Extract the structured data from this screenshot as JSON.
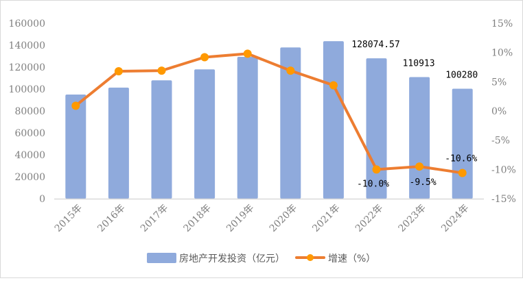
{
  "chart_data": {
    "type": "bar+line",
    "categories": [
      "2015年",
      "2016年",
      "2017年",
      "2018年",
      "2019年",
      "2020年",
      "2021年",
      "2022年",
      "2023年",
      "2024年"
    ],
    "series": [
      {
        "name": "房地产开发投资（亿元）",
        "type": "bar",
        "axis": "left",
        "color": "#8faadc",
        "values": [
          95000,
          101300,
          108000,
          118000,
          129400,
          138000,
          143700,
          128074.57,
          110913,
          100280
        ],
        "data_labels": [
          null,
          null,
          null,
          null,
          null,
          null,
          null,
          "128074.57",
          "110913",
          "100280"
        ]
      },
      {
        "name": "增速（%）",
        "type": "line",
        "axis": "right",
        "color": "#ed7d31",
        "marker_color": "#ff9900",
        "values": [
          0.9,
          6.8,
          6.9,
          9.2,
          9.8,
          6.9,
          4.4,
          -10.0,
          -9.5,
          -10.6
        ],
        "data_labels": [
          null,
          null,
          null,
          null,
          null,
          null,
          null,
          "-10.0%",
          "-9.5%",
          "-10.6%"
        ]
      }
    ],
    "left_axis": {
      "ylim": [
        0,
        160000
      ],
      "ticks": [
        "0",
        "20000",
        "40000",
        "60000",
        "80000",
        "100000",
        "120000",
        "140000",
        "160000"
      ]
    },
    "right_axis": {
      "ylim": [
        -15,
        15
      ],
      "ticks": [
        "-15%",
        "-10%",
        "-5%",
        "0%",
        "5%",
        "10%",
        "15%"
      ]
    },
    "grid": false,
    "legend_position": "bottom"
  }
}
